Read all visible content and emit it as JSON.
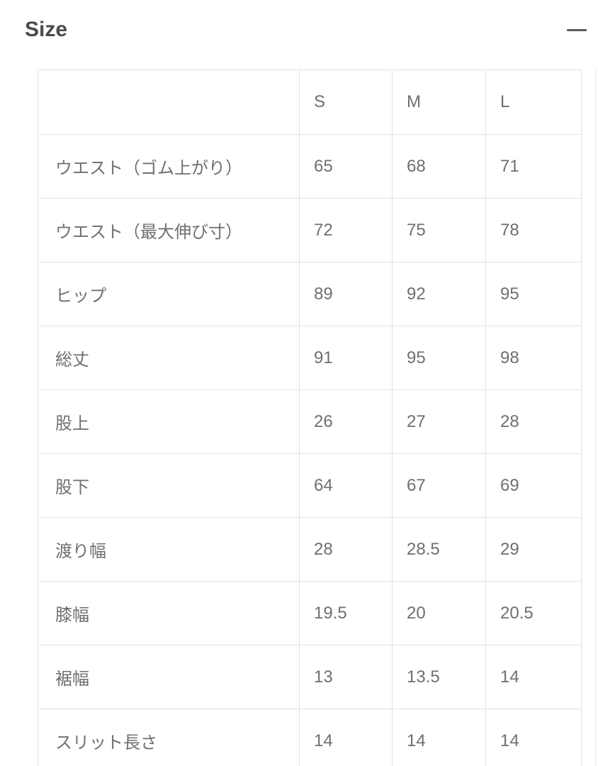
{
  "section": {
    "title": "Size",
    "collapse_icon": "minus"
  },
  "size_table": {
    "columns": [
      "",
      "S",
      "M",
      "L"
    ],
    "rows": [
      {
        "label": "ウエスト（ゴム上がり）",
        "values": [
          "65",
          "68",
          "71"
        ]
      },
      {
        "label": "ウエスト（最大伸び寸）",
        "values": [
          "72",
          "75",
          "78"
        ]
      },
      {
        "label": "ヒップ",
        "values": [
          "89",
          "92",
          "95"
        ]
      },
      {
        "label": "総丈",
        "values": [
          "91",
          "95",
          "98"
        ]
      },
      {
        "label": "股上",
        "values": [
          "26",
          "27",
          "28"
        ]
      },
      {
        "label": "股下",
        "values": [
          "64",
          "67",
          "69"
        ]
      },
      {
        "label": "渡り幅",
        "values": [
          "28",
          "28.5",
          "29"
        ]
      },
      {
        "label": "膝幅",
        "values": [
          "19.5",
          "20",
          "20.5"
        ]
      },
      {
        "label": "裾幅",
        "values": [
          "13",
          "13.5",
          "14"
        ]
      },
      {
        "label": "スリット長さ",
        "values": [
          "14",
          "14",
          "14"
        ]
      }
    ]
  },
  "colors": {
    "background": "#ffffff",
    "title_text": "#4a4a4a",
    "table_text": "#6f6f6f",
    "table_border": "#e3e3e3",
    "icon": "#5a5a5a"
  }
}
